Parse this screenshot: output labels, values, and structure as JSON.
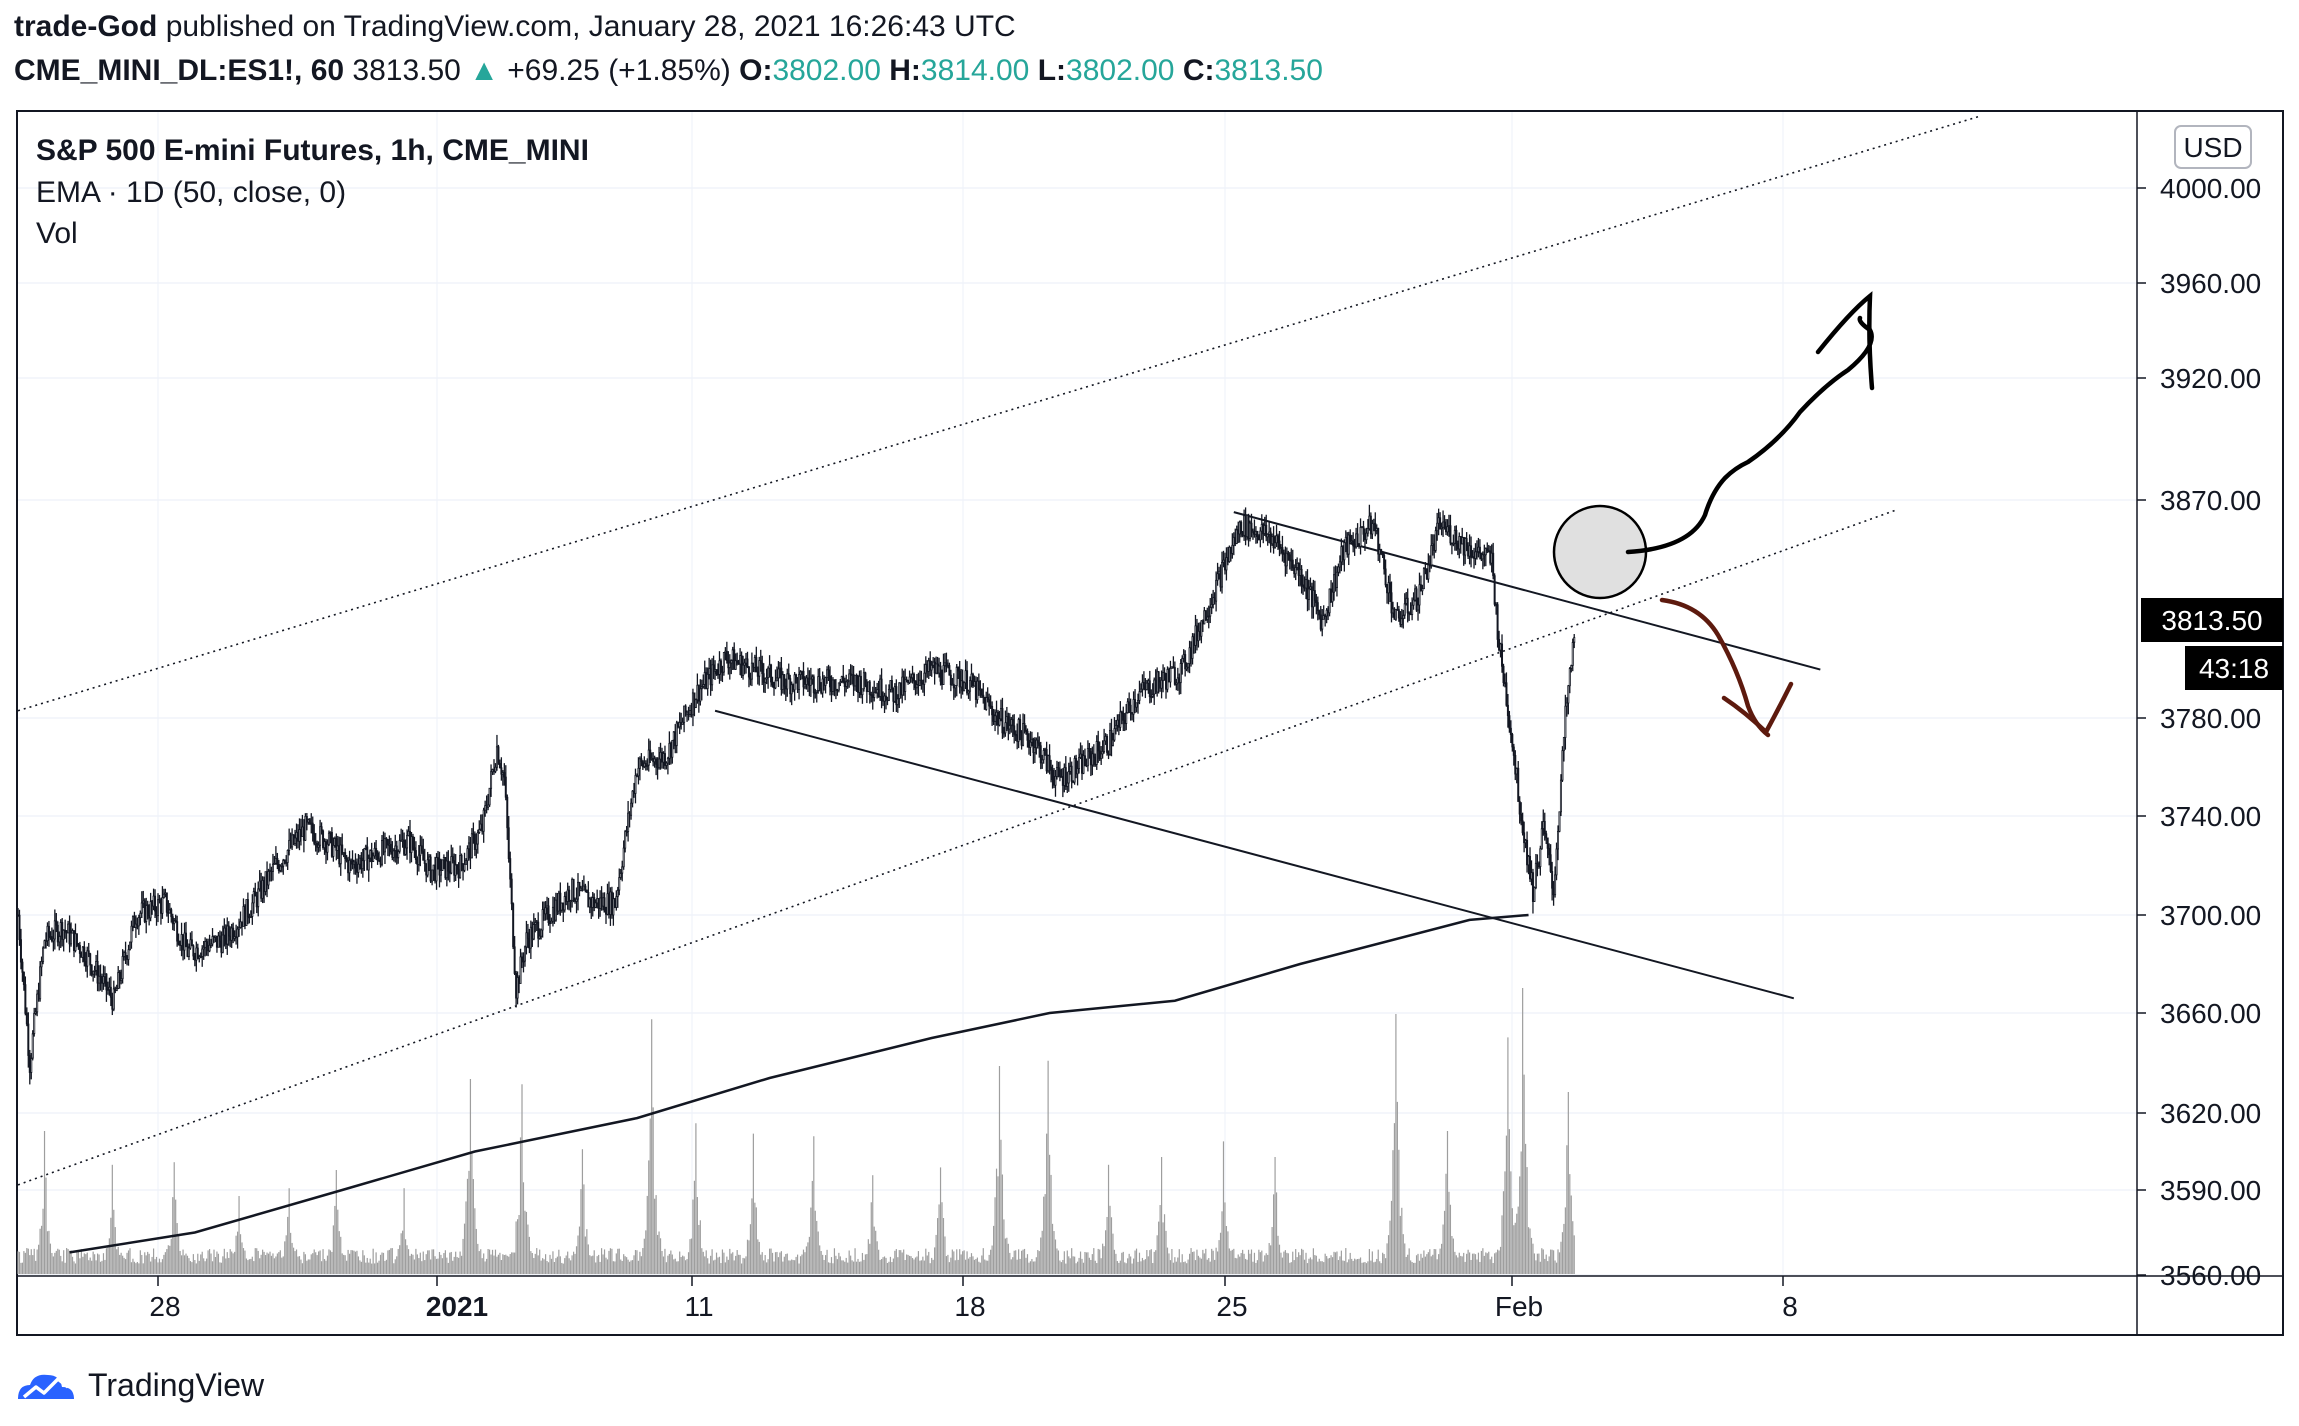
{
  "header": {
    "author": "trade-God",
    "published_text": "published on TradingView.com, January 28, 2021 16:26:43 UTC",
    "symbol": "CME_MINI_DL:ES1!, 60",
    "last": "3813.50",
    "up_arrow": "▲",
    "change": "+69.25 (+1.85%)",
    "o_label": "O:",
    "o_value": "3802.00",
    "h_label": "H:",
    "h_value": "3814.00",
    "l_label": "L:",
    "l_value": "3802.00",
    "c_label": "C:",
    "c_value": "3813.50"
  },
  "legend": {
    "title": "S&P 500 E-mini Futures, 1h, CME_MINI",
    "ema": "EMA · 1D (50, close, 0)",
    "vol": "Vol"
  },
  "footer": {
    "brand": "TradingView"
  },
  "colors": {
    "candle": "#131722",
    "volume": "#9e9e9e",
    "grid": "#f0f3fa",
    "price_tag": "#000000",
    "price_tag_text": "#ffffff",
    "up_arrow": "#26a69a",
    "ohlc_value": "#26a69a",
    "bearish_drawing": "#5d1a0e",
    "bullish_drawing": "#000000",
    "circle_fill": "#e0e0e0"
  },
  "chart_data": {
    "type": "candlestick",
    "title": "S&P 500 E-mini Futures, 1h, CME_MINI",
    "currency": "USD",
    "timeframe": "1h",
    "y_ticks": [
      4000,
      3960,
      3920,
      3870,
      3780,
      3740,
      3700,
      3660,
      3620,
      3590,
      3560
    ],
    "y_tick_labels": [
      "4000.00",
      "3960.00",
      "3920.00",
      "3870.00",
      "3780.00",
      "3740.00",
      "3700.00",
      "3660.00",
      "3620.00",
      "3590.00",
      "3560.00"
    ],
    "x_tick_labels": [
      "28",
      "2021",
      "11",
      "18",
      "25",
      "Feb",
      "8"
    ],
    "x_tick_bold": [
      false,
      true,
      false,
      false,
      false,
      false,
      false
    ],
    "last_price_label": "3813.50",
    "countdown_label": "43:18",
    "price_path": [
      {
        "x": 0,
        "close": 3700
      },
      {
        "x": 8,
        "close": 3640
      },
      {
        "x": 18,
        "close": 3690
      },
      {
        "x": 30,
        "close": 3695
      },
      {
        "x": 45,
        "close": 3685
      },
      {
        "x": 65,
        "close": 3665
      },
      {
        "x": 80,
        "close": 3700
      },
      {
        "x": 100,
        "close": 3705
      },
      {
        "x": 115,
        "close": 3685
      },
      {
        "x": 140,
        "close": 3690
      },
      {
        "x": 160,
        "close": 3705
      },
      {
        "x": 175,
        "close": 3720
      },
      {
        "x": 195,
        "close": 3735
      },
      {
        "x": 210,
        "close": 3730
      },
      {
        "x": 225,
        "close": 3720
      },
      {
        "x": 245,
        "close": 3725
      },
      {
        "x": 265,
        "close": 3730
      },
      {
        "x": 280,
        "close": 3718
      },
      {
        "x": 300,
        "close": 3720
      },
      {
        "x": 315,
        "close": 3735
      },
      {
        "x": 325,
        "close": 3768
      },
      {
        "x": 330,
        "close": 3755
      },
      {
        "x": 338,
        "close": 3670
      },
      {
        "x": 345,
        "close": 3690
      },
      {
        "x": 360,
        "close": 3700
      },
      {
        "x": 375,
        "close": 3710
      },
      {
        "x": 390,
        "close": 3705
      },
      {
        "x": 405,
        "close": 3705
      },
      {
        "x": 420,
        "close": 3760
      },
      {
        "x": 440,
        "close": 3765
      },
      {
        "x": 460,
        "close": 3790
      },
      {
        "x": 480,
        "close": 3805
      },
      {
        "x": 500,
        "close": 3800
      },
      {
        "x": 520,
        "close": 3795
      },
      {
        "x": 545,
        "close": 3795
      },
      {
        "x": 570,
        "close": 3795
      },
      {
        "x": 595,
        "close": 3790
      },
      {
        "x": 620,
        "close": 3800
      },
      {
        "x": 645,
        "close": 3795
      },
      {
        "x": 665,
        "close": 3780
      },
      {
        "x": 690,
        "close": 3770
      },
      {
        "x": 705,
        "close": 3755
      },
      {
        "x": 720,
        "close": 3760
      },
      {
        "x": 740,
        "close": 3770
      },
      {
        "x": 760,
        "close": 3790
      },
      {
        "x": 790,
        "close": 3800
      },
      {
        "x": 810,
        "close": 3830
      },
      {
        "x": 830,
        "close": 3860
      },
      {
        "x": 850,
        "close": 3855
      },
      {
        "x": 870,
        "close": 3840
      },
      {
        "x": 885,
        "close": 3820
      },
      {
        "x": 900,
        "close": 3850
      },
      {
        "x": 920,
        "close": 3860
      },
      {
        "x": 935,
        "close": 3820
      },
      {
        "x": 950,
        "close": 3830
      },
      {
        "x": 965,
        "close": 3860
      },
      {
        "x": 985,
        "close": 3850
      },
      {
        "x": 1000,
        "close": 3845
      },
      {
        "x": 1005,
        "close": 3810
      },
      {
        "x": 1012,
        "close": 3780
      },
      {
        "x": 1020,
        "close": 3740
      },
      {
        "x": 1028,
        "close": 3710
      },
      {
        "x": 1035,
        "close": 3735
      },
      {
        "x": 1042,
        "close": 3710
      },
      {
        "x": 1050,
        "close": 3780
      },
      {
        "x": 1056,
        "close": 3813.5
      }
    ],
    "ema_path": [
      {
        "x": 35,
        "value": 3568
      },
      {
        "x": 120,
        "value": 3575
      },
      {
        "x": 220,
        "value": 3590
      },
      {
        "x": 310,
        "value": 3605
      },
      {
        "x": 420,
        "value": 3618
      },
      {
        "x": 510,
        "value": 3634
      },
      {
        "x": 620,
        "value": 3650
      },
      {
        "x": 700,
        "value": 3660
      },
      {
        "x": 785,
        "value": 3665
      },
      {
        "x": 870,
        "value": 3680
      },
      {
        "x": 985,
        "value": 3698
      },
      {
        "x": 1025,
        "value": 3700
      }
    ],
    "volume_spikes": [
      {
        "x": 18,
        "rel": 0.55
      },
      {
        "x": 64,
        "rel": 0.42
      },
      {
        "x": 106,
        "rel": 0.43
      },
      {
        "x": 150,
        "rel": 0.3
      },
      {
        "x": 184,
        "rel": 0.33
      },
      {
        "x": 216,
        "rel": 0.4
      },
      {
        "x": 262,
        "rel": 0.33
      },
      {
        "x": 307,
        "rel": 0.75
      },
      {
        "x": 342,
        "rel": 0.73
      },
      {
        "x": 383,
        "rel": 0.48
      },
      {
        "x": 430,
        "rel": 0.98
      },
      {
        "x": 460,
        "rel": 0.58
      },
      {
        "x": 499,
        "rel": 0.54
      },
      {
        "x": 540,
        "rel": 0.53
      },
      {
        "x": 580,
        "rel": 0.38
      },
      {
        "x": 626,
        "rel": 0.41
      },
      {
        "x": 666,
        "rel": 0.8
      },
      {
        "x": 699,
        "rel": 0.82
      },
      {
        "x": 740,
        "rel": 0.42
      },
      {
        "x": 776,
        "rel": 0.45
      },
      {
        "x": 818,
        "rel": 0.51
      },
      {
        "x": 853,
        "rel": 0.45
      },
      {
        "x": 935,
        "rel": 1.0
      },
      {
        "x": 970,
        "rel": 0.55
      },
      {
        "x": 1011,
        "rel": 0.91
      },
      {
        "x": 1021,
        "rel": 1.1
      },
      {
        "x": 1052,
        "rel": 0.7
      }
    ],
    "trendlines": [
      {
        "style": "dotted",
        "from": {
          "x": 0,
          "price": 3783
        },
        "to": {
          "x": 1330,
          "price": 4030
        }
      },
      {
        "style": "dotted",
        "from": {
          "x": 0,
          "price": 3592
        },
        "to": {
          "x": 1275,
          "price": 3866
        }
      },
      {
        "style": "solid",
        "from": {
          "x": 473,
          "price": 3783
        },
        "to": {
          "x": 1205,
          "price": 3666
        }
      },
      {
        "style": "solid",
        "from": {
          "x": 825,
          "price": 3865
        },
        "to": {
          "x": 1223,
          "price": 3800
        }
      }
    ]
  }
}
